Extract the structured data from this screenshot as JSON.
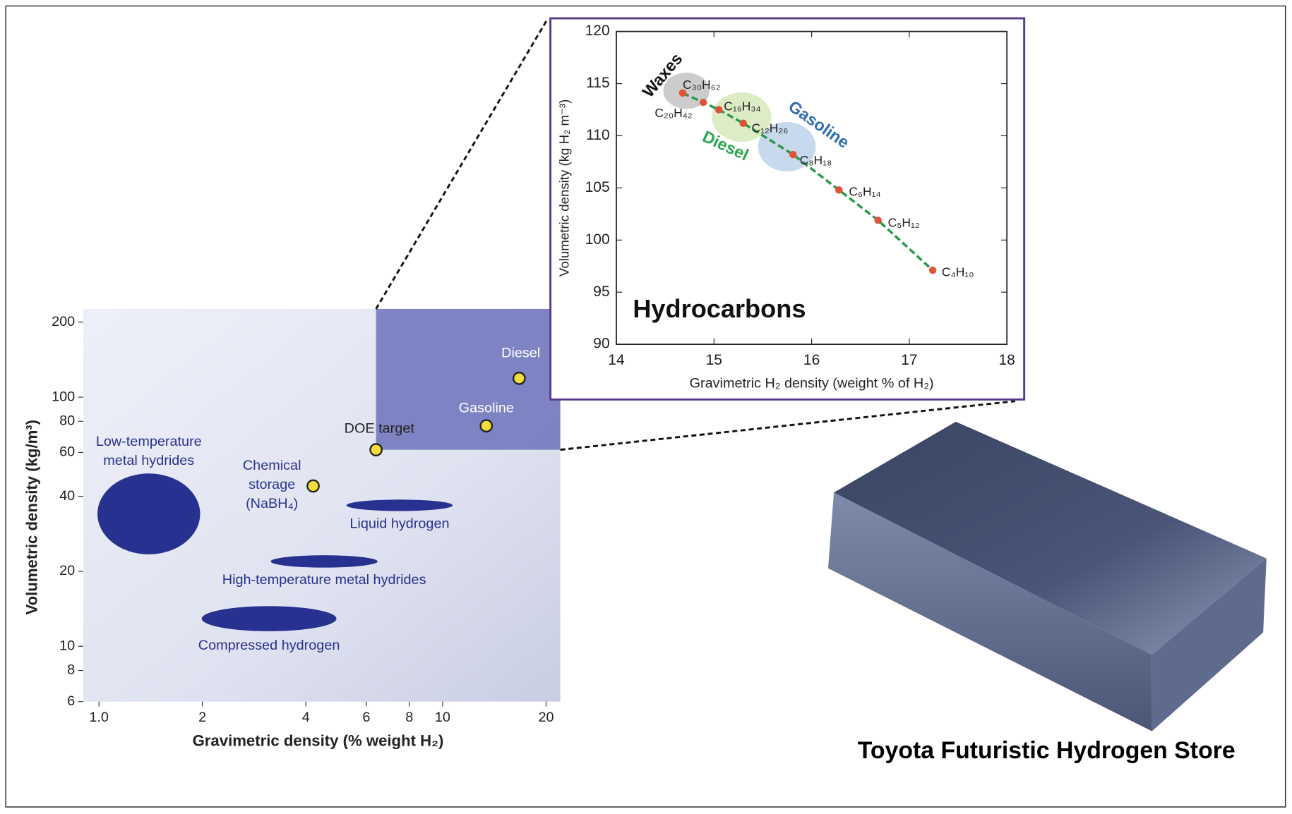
{
  "chart_data": [
    {
      "type": "scatter",
      "xlabel": "Gravimetric density (% weight H₂)",
      "ylabel": "Volumetric density (kg/m³)",
      "xscale": "log",
      "yscale": "log",
      "xlim": [
        0.9,
        22
      ],
      "ylim": [
        6,
        226
      ],
      "xticks": [
        {
          "value": 1,
          "label": "1.0"
        },
        2,
        4,
        6,
        8,
        10,
        20
      ],
      "yticks": [
        6,
        8,
        10,
        20,
        40,
        60,
        80,
        100,
        200
      ],
      "points": {
        "labels": [
          [
            "Chemical",
            "storage",
            "(NaBH₄)"
          ],
          [
            "DOE target"
          ],
          [
            "Gasoline"
          ],
          [
            "Diesel"
          ]
        ],
        "x": [
          4.2,
          6.4,
          13.4,
          16.7
        ],
        "y": [
          44,
          61.5,
          76.7,
          119
        ],
        "color": "#f3dc3c"
      },
      "regions": [
        {
          "label": [
            "Low-temperature",
            "metal hydrides"
          ],
          "xrange": [
            0.99,
            1.97
          ],
          "yrange": [
            23.4,
            49.4
          ]
        },
        {
          "label": [
            "Liquid hydrogen"
          ],
          "xrange": [
            5.25,
            10.7
          ],
          "yrange": [
            34.9,
            38.8
          ]
        },
        {
          "label": [
            "High-temperature metal hydrides"
          ],
          "xrange": [
            3.16,
            6.47
          ],
          "yrange": [
            20.7,
            23.2
          ]
        },
        {
          "label": [
            "Compressed hydrogen"
          ],
          "xrange": [
            1.99,
            4.91
          ],
          "yrange": [
            11.5,
            14.5
          ]
        }
      ],
      "region_color": "#27318f"
    },
    {
      "type": "line",
      "title": "Hydrocarbons",
      "xlabel": "Gravimetric H₂ density (weight % of H₂)",
      "ylabel": "Volumetric density (kg H₂ m⁻³)",
      "xlim": [
        14,
        18
      ],
      "ylim": [
        90,
        120
      ],
      "xticks": [
        14,
        15,
        16,
        17,
        18
      ],
      "yticks": [
        90,
        95,
        100,
        105,
        110,
        115,
        120
      ],
      "series": [
        {
          "labels": [
            "C₃₀H₆₂",
            "C₂₀H₄₂",
            "C₁₆H₃₄",
            "C₁₂H₂₆",
            "C₈H₁₈",
            "C₆H₁₄",
            "C₅H₁₂",
            "C₄H₁₀"
          ],
          "x": [
            14.68,
            14.89,
            15.05,
            15.3,
            15.81,
            16.28,
            16.68,
            17.24
          ],
          "values": [
            114.1,
            113.2,
            112.5,
            111.2,
            108.2,
            104.8,
            101.9,
            97.1
          ],
          "color": "#e0523a",
          "line_color": "#2a9a4a"
        }
      ],
      "annotations": [
        {
          "text": "Waxes",
          "color": "#111111"
        },
        {
          "text": "Diesel",
          "color": "#2aa84a"
        },
        {
          "text": "Gasoline",
          "color": "#2f6fb0"
        }
      ]
    }
  ],
  "caption": "Toyota Futuristic Hydrogen Store"
}
